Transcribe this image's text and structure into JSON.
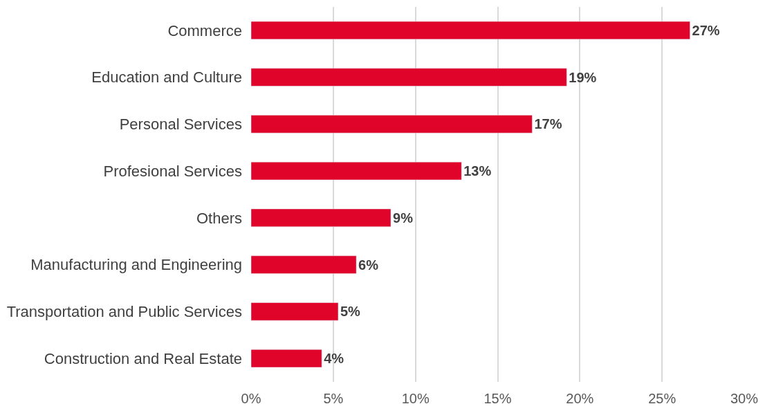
{
  "chart_data": {
    "type": "bar",
    "orientation": "horizontal",
    "categories": [
      "Commerce",
      "Education and Culture",
      "Personal Services",
      "Profesional Services",
      "Others",
      "Manufacturing and Engineering",
      "Transportation and Public Services",
      "Construction and Real Estate"
    ],
    "values": [
      26.7,
      19.2,
      17.1,
      12.8,
      8.5,
      6.4,
      5.3,
      4.3
    ],
    "value_labels": [
      "27%",
      "19%",
      "17%",
      "13%",
      "9%",
      "6%",
      "5%",
      "4%"
    ],
    "color": "#e0042b",
    "xlim": [
      0,
      30
    ],
    "xticks": [
      {
        "value": 0,
        "label": "0%"
      },
      {
        "value": 5,
        "label": "5%"
      },
      {
        "value": 10,
        "label": "10%"
      },
      {
        "value": 15,
        "label": "15%"
      },
      {
        "value": 20,
        "label": "20%"
      },
      {
        "value": 25,
        "label": "25%"
      },
      {
        "value": 30,
        "label": "30%"
      }
    ],
    "grid": "x",
    "legend": false
  }
}
